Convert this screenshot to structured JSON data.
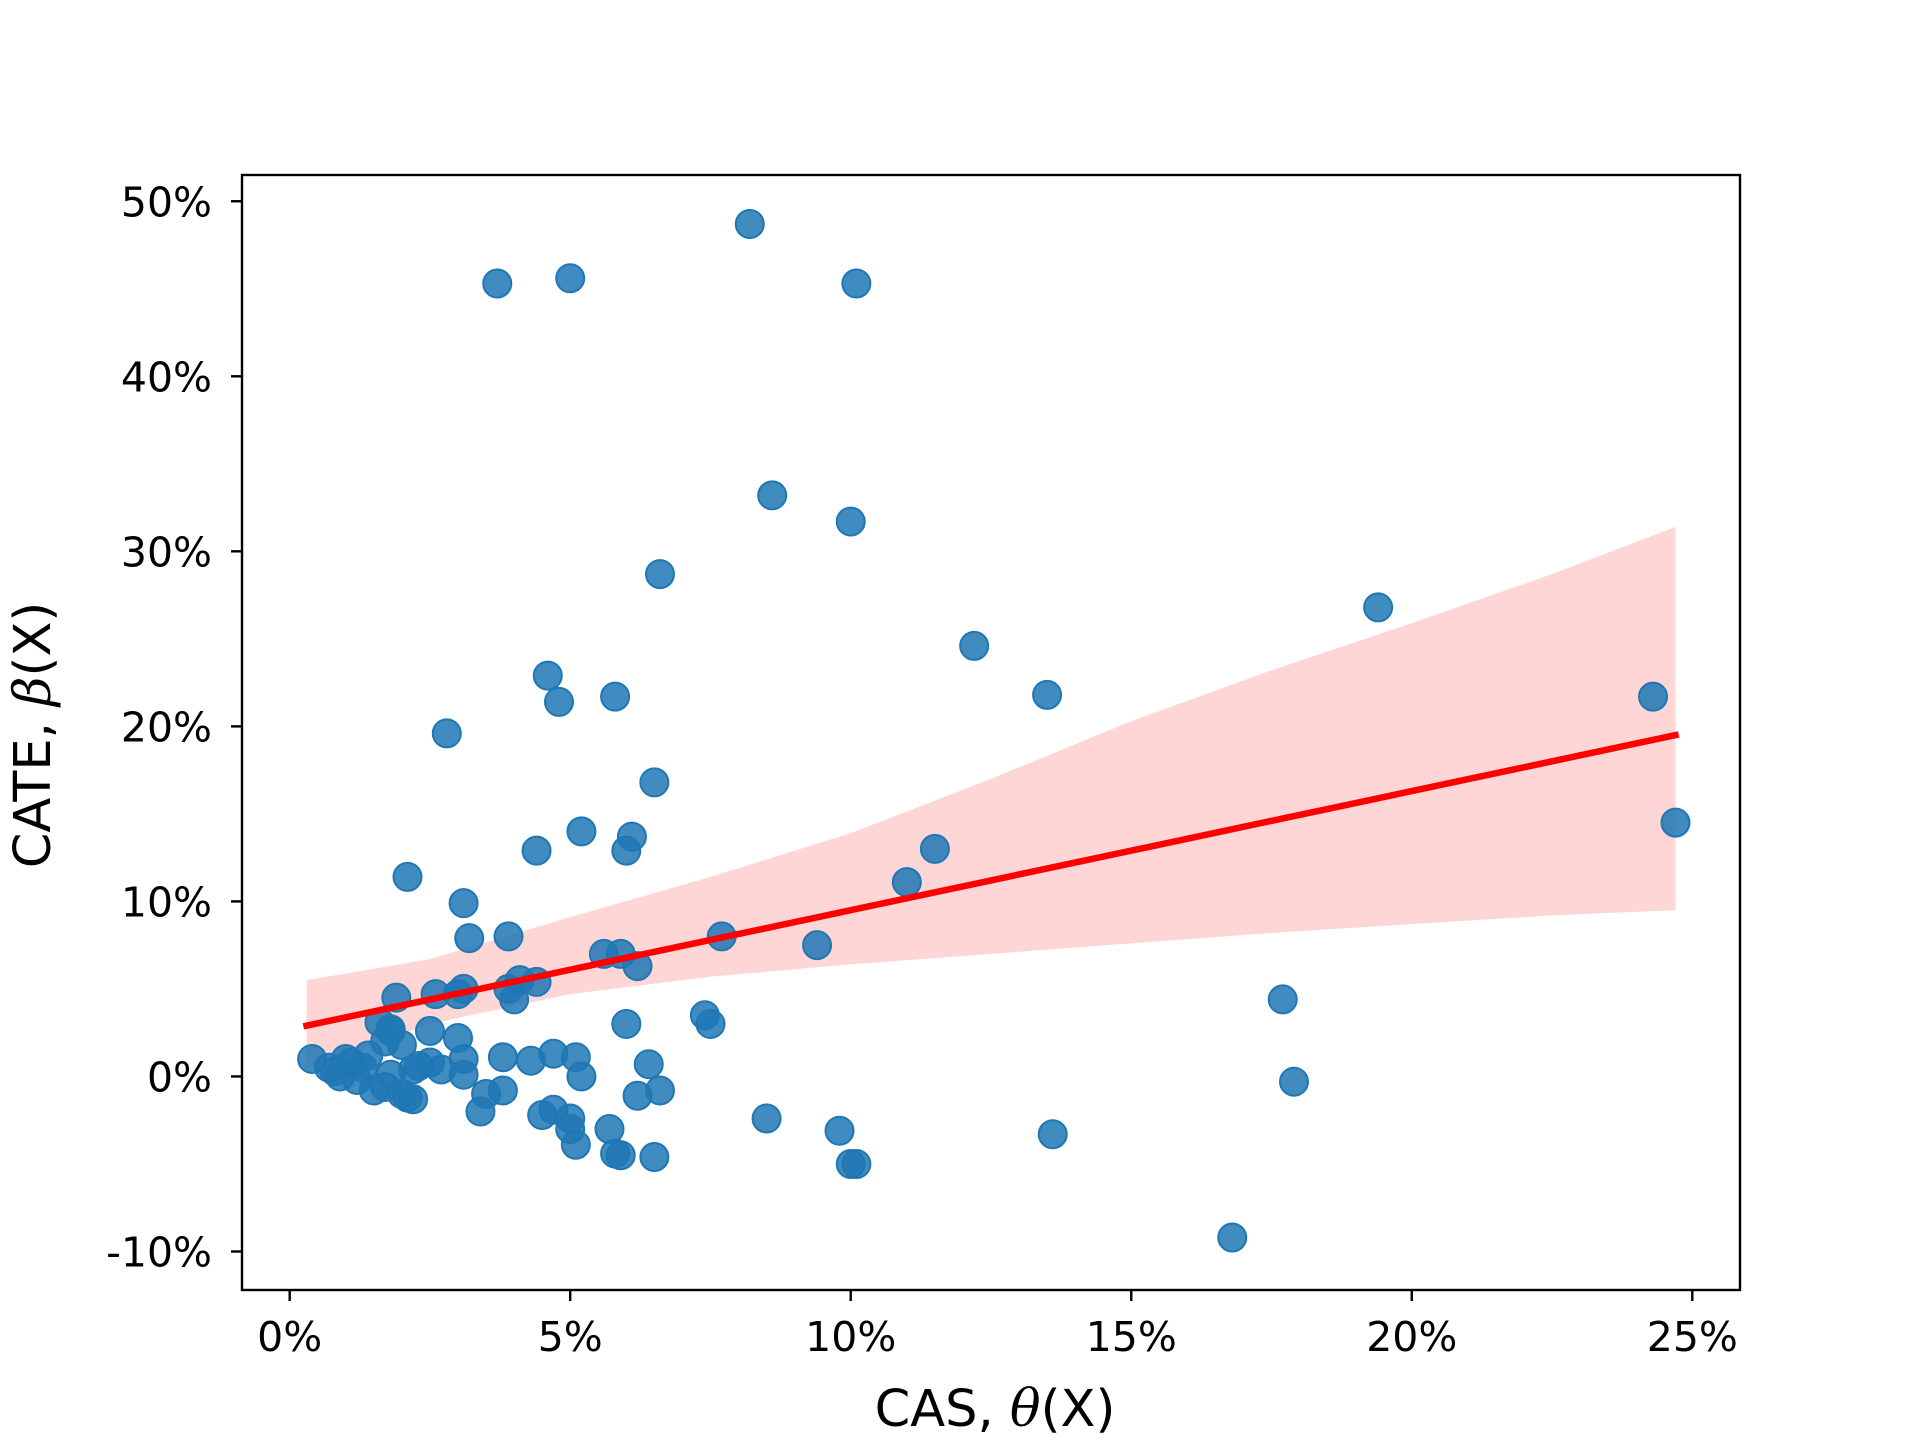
{
  "chart_data": {
    "type": "scatter",
    "xlabel": "CAS, ",
    "xlabel_math": "θ",
    "xlabel_suffix": "(X)",
    "ylabel": "CATE, ",
    "ylabel_math": "β",
    "ylabel_suffix": "(X)",
    "xlim": [
      -0.0085,
      0.2585
    ],
    "ylim": [
      -0.122,
      0.515
    ],
    "x_ticks": [
      0,
      0.05,
      0.1,
      0.15,
      0.2,
      0.25
    ],
    "x_tick_labels": [
      "0%",
      "5%",
      "10%",
      "15%",
      "20%",
      "25%"
    ],
    "y_ticks": [
      -0.1,
      0,
      0.1,
      0.2,
      0.3,
      0.4,
      0.5
    ],
    "y_tick_labels": [
      "-10%",
      "0%",
      "10%",
      "20%",
      "30%",
      "40%",
      "50%"
    ],
    "grid": false,
    "colors": {
      "points": "#1f77b4",
      "regression_line": "#ff0000",
      "confidence_band": "#ffcccc"
    },
    "points": [
      [
        0.004,
        0.01
      ],
      [
        0.007,
        0.005
      ],
      [
        0.008,
        0.003
      ],
      [
        0.009,
        0.0
      ],
      [
        0.01,
        0.01
      ],
      [
        0.011,
        0.008
      ],
      [
        0.012,
        -0.002
      ],
      [
        0.013,
        0.005
      ],
      [
        0.014,
        0.012
      ],
      [
        0.015,
        -0.008
      ],
      [
        0.016,
        0.031
      ],
      [
        0.017,
        0.02
      ],
      [
        0.017,
        -0.006
      ],
      [
        0.018,
        0.027
      ],
      [
        0.018,
        0.026
      ],
      [
        0.018,
        0.001
      ],
      [
        0.019,
        0.045
      ],
      [
        0.02,
        0.018
      ],
      [
        0.02,
        -0.01
      ],
      [
        0.021,
        -0.012
      ],
      [
        0.021,
        0.114
      ],
      [
        0.022,
        0.004
      ],
      [
        0.022,
        -0.013
      ],
      [
        0.023,
        0.006
      ],
      [
        0.025,
        0.008
      ],
      [
        0.025,
        0.026
      ],
      [
        0.026,
        0.047
      ],
      [
        0.027,
        0.004
      ],
      [
        0.028,
        0.196
      ],
      [
        0.03,
        0.047
      ],
      [
        0.03,
        0.022
      ],
      [
        0.031,
        0.05
      ],
      [
        0.031,
        0.01
      ],
      [
        0.031,
        0.001
      ],
      [
        0.031,
        0.099
      ],
      [
        0.032,
        0.079
      ],
      [
        0.034,
        -0.02
      ],
      [
        0.035,
        -0.01
      ],
      [
        0.037,
        0.453
      ],
      [
        0.038,
        0.011
      ],
      [
        0.038,
        -0.008
      ],
      [
        0.039,
        0.08
      ],
      [
        0.039,
        0.05
      ],
      [
        0.04,
        0.044
      ],
      [
        0.041,
        0.055
      ],
      [
        0.043,
        0.009
      ],
      [
        0.044,
        0.054
      ],
      [
        0.044,
        0.129
      ],
      [
        0.045,
        -0.022
      ],
      [
        0.046,
        0.229
      ],
      [
        0.047,
        0.013
      ],
      [
        0.047,
        -0.019
      ],
      [
        0.048,
        0.214
      ],
      [
        0.05,
        -0.024
      ],
      [
        0.05,
        -0.03
      ],
      [
        0.05,
        0.456
      ],
      [
        0.051,
        0.011
      ],
      [
        0.051,
        -0.039
      ],
      [
        0.052,
        0.14
      ],
      [
        0.052,
        0.0
      ],
      [
        0.056,
        0.07
      ],
      [
        0.057,
        -0.03
      ],
      [
        0.058,
        0.217
      ],
      [
        0.058,
        -0.044
      ],
      [
        0.059,
        -0.045
      ],
      [
        0.059,
        0.07
      ],
      [
        0.06,
        0.03
      ],
      [
        0.06,
        0.129
      ],
      [
        0.061,
        0.137
      ],
      [
        0.062,
        -0.011
      ],
      [
        0.062,
        0.063
      ],
      [
        0.064,
        0.007
      ],
      [
        0.065,
        0.168
      ],
      [
        0.065,
        -0.046
      ],
      [
        0.066,
        -0.008
      ],
      [
        0.066,
        0.287
      ],
      [
        0.074,
        0.035
      ],
      [
        0.075,
        0.03
      ],
      [
        0.077,
        0.08
      ],
      [
        0.085,
        -0.024
      ],
      [
        0.082,
        0.487
      ],
      [
        0.086,
        0.332
      ],
      [
        0.094,
        0.075
      ],
      [
        0.098,
        -0.031
      ],
      [
        0.1,
        -0.05
      ],
      [
        0.1,
        0.317
      ],
      [
        0.101,
        0.453
      ],
      [
        0.101,
        -0.05
      ],
      [
        0.11,
        0.111
      ],
      [
        0.115,
        0.13
      ],
      [
        0.122,
        0.246
      ],
      [
        0.135,
        0.218
      ],
      [
        0.136,
        -0.033
      ],
      [
        0.168,
        -0.092
      ],
      [
        0.177,
        0.044
      ],
      [
        0.179,
        -0.003
      ],
      [
        0.194,
        0.268
      ],
      [
        0.243,
        0.217
      ],
      [
        0.247,
        0.145
      ]
    ],
    "regression": {
      "x": [
        0.003,
        0.247
      ],
      "y": [
        0.029,
        0.195
      ]
    },
    "confidence_band": {
      "x": [
        0.003,
        0.025,
        0.05,
        0.075,
        0.1,
        0.125,
        0.15,
        0.175,
        0.2,
        0.225,
        0.247
      ],
      "lower": [
        0.005,
        0.03,
        0.047,
        0.057,
        0.064,
        0.07,
        0.076,
        0.082,
        0.087,
        0.092,
        0.095
      ],
      "upper": [
        0.055,
        0.067,
        0.091,
        0.114,
        0.139,
        0.17,
        0.203,
        0.232,
        0.259,
        0.287,
        0.314
      ]
    }
  }
}
